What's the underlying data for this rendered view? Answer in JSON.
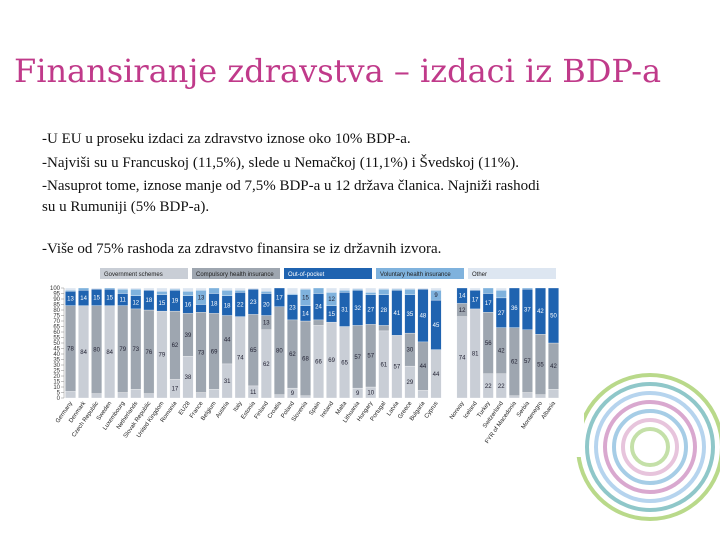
{
  "title": "Finansiranje zdravstva – izdaci iz BDP-a",
  "lines": [
    "-U EU u proseku izdaci za zdravstvo iznose oko 10% BDP-a.",
    "-Najviši su u Francuskoj (11,5%), slede u Nemačkoj (11,1%) i Švedskoj (11%).",
    "-Nasuprot tome, iznose manje od 7,5% BDP-a u 12 država članica. Najniži rashodi",
    "su u Rumuniji (5% BDP-a).",
    "-Više od 75% rashoda za zdravstvo finansira se iz državnih izvora."
  ],
  "chart_data": {
    "type": "bar",
    "stacked": true,
    "categories": [
      "Germany",
      "Denmark",
      "Czech Republic",
      "Sweden",
      "Luxembourg",
      "Netherlands",
      "Slovak Republic",
      "United Kingdom",
      "Romania",
      "EU28",
      "France",
      "Belgium",
      "Austria",
      "Italy",
      "Estonia",
      "Finland",
      "Croatia",
      "Poland",
      "Slovenia",
      "Spain",
      "Ireland",
      "Malta",
      "Lithuania",
      "Hungary",
      "Portugal",
      "Latvia",
      "Greece",
      "Bulgaria",
      "Cyprus",
      null,
      "Norway",
      "Iceland",
      "Turkey",
      "Switzerland",
      "FYR of Macedonia",
      "Serbia",
      "Montenegro",
      "Albania"
    ],
    "series": [
      {
        "name": "Government schemes",
        "color": "#c9ced6",
        "values": [
          6,
          84,
          4,
          84,
          5,
          8,
          4,
          79,
          17,
          38,
          5,
          8,
          31,
          74,
          11,
          62,
          3,
          9,
          2,
          66,
          69,
          65,
          9,
          10,
          61,
          57,
          29,
          7,
          44,
          null,
          74,
          81,
          22,
          22,
          2,
          5,
          3,
          8
        ]
      },
      {
        "name": "Compulsory health insurance",
        "color": "#9ea6b0",
        "values": [
          78,
          0,
          80,
          0,
          79,
          73,
          76,
          0,
          62,
          39,
          73,
          69,
          44,
          0,
          65,
          13,
          80,
          62,
          68,
          5,
          0,
          0,
          57,
          57,
          5,
          0,
          30,
          44,
          0,
          null,
          12,
          0,
          56,
          42,
          62,
          57,
          55,
          42
        ]
      },
      {
        "name": "Out-of-pocket",
        "color": "#1f63b0",
        "values": [
          13,
          14,
          15,
          15,
          11,
          12,
          18,
          15,
          19,
          16,
          7,
          18,
          18,
          22,
          23,
          20,
          17,
          23,
          14,
          24,
          15,
          31,
          32,
          27,
          28,
          41,
          35,
          48,
          45,
          null,
          14,
          17,
          17,
          27,
          36,
          37,
          42,
          50
        ]
      },
      {
        "name": "Voluntary health insurance",
        "color": "#7fb2dd",
        "values": [
          1,
          2,
          0,
          1,
          4,
          6,
          0,
          3,
          1,
          4,
          13,
          5,
          5,
          2,
          0,
          2,
          0,
          1,
          15,
          5,
          12,
          2,
          1,
          2,
          5,
          1,
          5,
          0,
          9,
          null,
          0,
          0,
          5,
          7,
          0,
          1,
          0,
          0
        ]
      },
      {
        "name": "Other",
        "color": "#dde6f1",
        "values": [
          2,
          0,
          1,
          0,
          1,
          1,
          2,
          3,
          1,
          3,
          2,
          0,
          2,
          2,
          1,
          3,
          0,
          5,
          1,
          0,
          4,
          2,
          1,
          4,
          1,
          1,
          1,
          1,
          2,
          null,
          0,
          2,
          0,
          2,
          0,
          0,
          0,
          0
        ]
      }
    ],
    "ylim": [
      0,
      100
    ],
    "yticks": [
      0,
      5,
      10,
      15,
      20,
      25,
      30,
      35,
      40,
      45,
      50,
      55,
      60,
      65,
      70,
      75,
      80,
      85,
      90,
      95,
      100
    ]
  }
}
